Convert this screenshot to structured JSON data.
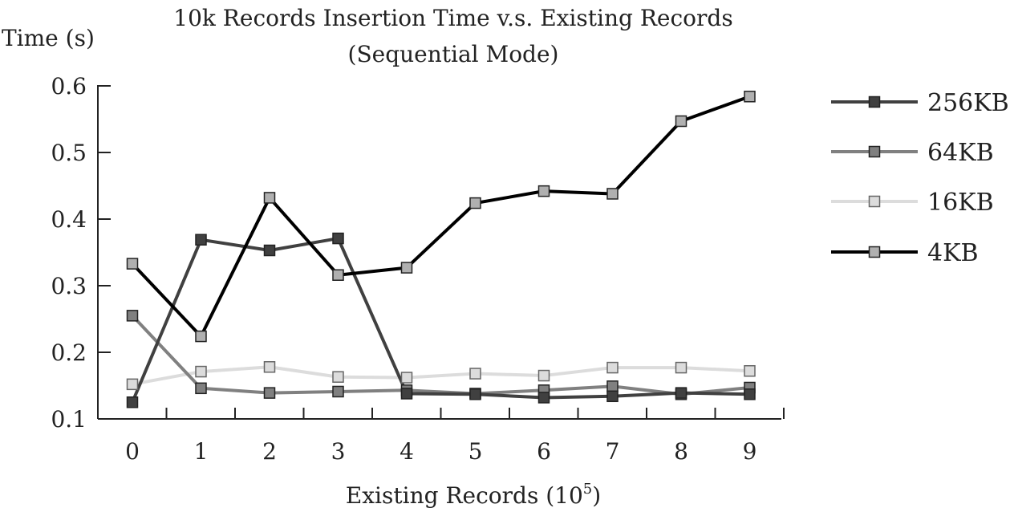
{
  "chart_data": {
    "type": "line",
    "title": "10k Records Insertion Time v.s. Existing Records",
    "subtitle": "(Sequential Mode)",
    "xlabel": "Existing Records (10",
    "xlabel_sup": "5",
    "xlabel_end": ")",
    "ylabel": "Time (s)",
    "x": [
      "0",
      "1",
      "2",
      "3",
      "4",
      "5",
      "6",
      "7",
      "8",
      "9"
    ],
    "yticks": [
      "0.1",
      "0.2",
      "0.3",
      "0.4",
      "0.5",
      "0.6"
    ],
    "ylim": [
      0.1,
      0.6
    ],
    "legend_position": "right",
    "grid": false,
    "series": [
      {
        "name": "256KB",
        "color": "#404040",
        "values": [
          0.125,
          0.369,
          0.353,
          0.371,
          0.138,
          0.137,
          0.132,
          0.134,
          0.139,
          0.137
        ]
      },
      {
        "name": "64KB",
        "color": "#808080",
        "values": [
          0.255,
          0.146,
          0.139,
          0.141,
          0.143,
          0.138,
          0.143,
          0.149,
          0.137,
          0.147
        ]
      },
      {
        "name": "16KB",
        "color": "#dcdcdc",
        "values": [
          0.152,
          0.171,
          0.178,
          0.163,
          0.162,
          0.168,
          0.165,
          0.177,
          0.177,
          0.172
        ]
      },
      {
        "name": "4KB",
        "color": "#000000",
        "marker_fill": "#b0b0b0",
        "values": [
          0.333,
          0.224,
          0.432,
          0.316,
          0.327,
          0.424,
          0.442,
          0.438,
          0.547,
          0.584
        ]
      }
    ]
  }
}
